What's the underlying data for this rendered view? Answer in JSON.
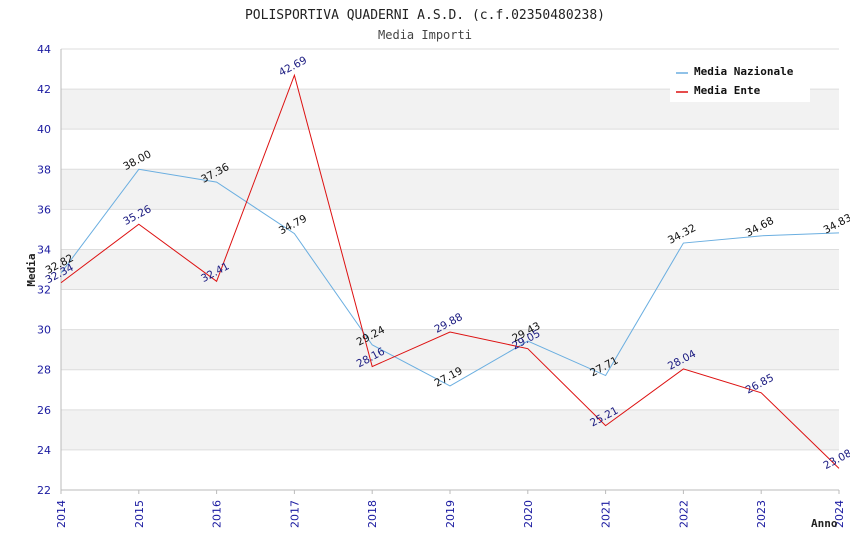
{
  "chart_data": {
    "type": "line",
    "title": "POLISPORTIVA QUADERNI A.S.D. (c.f.02350480238)",
    "subtitle": "Media Importi",
    "xlabel": "Anno",
    "ylabel": "Media",
    "ylim": [
      22,
      44
    ],
    "yticks": [
      "22",
      "24",
      "26",
      "28",
      "30",
      "32",
      "34",
      "36",
      "38",
      "40",
      "42",
      "44"
    ],
    "x": [
      "2014",
      "2015",
      "2016",
      "2017",
      "2018",
      "2019",
      "2020",
      "2021",
      "2022",
      "2023",
      "2024"
    ],
    "legend_position": "top-right",
    "grid": true,
    "series": [
      {
        "name": "Media Nazionale",
        "color": "#6aaee0",
        "label_color": "#111111",
        "values": [
          32.82,
          38.0,
          37.36,
          34.79,
          29.24,
          27.19,
          29.43,
          27.71,
          34.32,
          34.68,
          34.83
        ],
        "labels": [
          "32.82",
          "38.00",
          "37.36",
          "34.79",
          "29.24",
          "27.19",
          "29.43",
          "27.71",
          "34.32",
          "34.68",
          "34.83"
        ]
      },
      {
        "name": "Media Ente",
        "color": "#dd1111",
        "label_color": "#1a1a80",
        "values": [
          32.34,
          35.26,
          32.41,
          42.69,
          28.16,
          29.88,
          29.05,
          25.21,
          28.04,
          26.85,
          23.08
        ],
        "labels": [
          "32.34",
          "35.26",
          "32.41",
          "42.69",
          "28.16",
          "29.88",
          "29.05",
          "25.21",
          "28.04",
          "26.85",
          "23.08"
        ]
      }
    ]
  }
}
